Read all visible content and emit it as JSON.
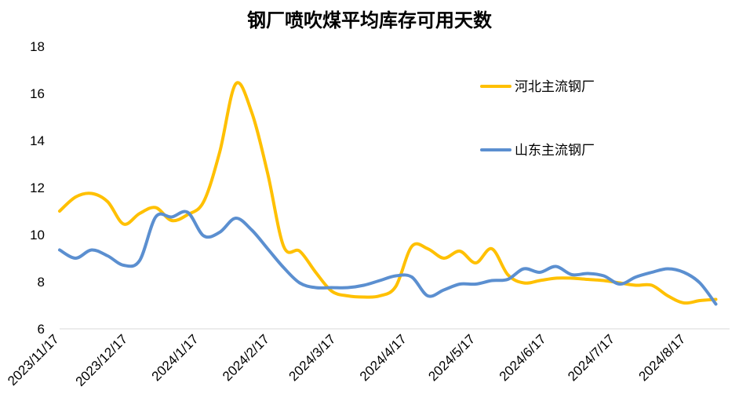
{
  "chart_data": {
    "type": "line",
    "title": "钢厂喷吹煤平均库存可用天数",
    "xlabel": "",
    "ylabel": "",
    "ylim": [
      6,
      18
    ],
    "yticks": [
      "6",
      "8",
      "10",
      "12",
      "14",
      "16",
      "18"
    ],
    "xlim": [
      "2023/11/17",
      "2024/9/5"
    ],
    "xticks": [
      "2023/11/17",
      "2023/12/17",
      "2024/1/17",
      "2024/2/17",
      "2024/3/17",
      "2024/4/17",
      "2024/5/17",
      "2024/6/17",
      "2024/7/17",
      "2024/8/17"
    ],
    "grid": false,
    "legend_position": "top-right",
    "series": [
      {
        "name": "河北主流钢厂",
        "color": "#FFC000",
        "points": [
          [
            "2023/11/17",
            11.0
          ],
          [
            "2023/11/24",
            11.6
          ],
          [
            "2023/12/1",
            11.75
          ],
          [
            "2023/12/8",
            11.4
          ],
          [
            "2023/12/15",
            10.45
          ],
          [
            "2023/12/22",
            10.9
          ],
          [
            "2023/12/29",
            11.15
          ],
          [
            "2024/1/5",
            10.6
          ],
          [
            "2024/1/12",
            10.85
          ],
          [
            "2024/1/19",
            11.4
          ],
          [
            "2024/1/26",
            13.5
          ],
          [
            "2024/2/2",
            16.4
          ],
          [
            "2024/2/9",
            15.2
          ],
          [
            "2024/2/16",
            12.6
          ],
          [
            "2024/2/23",
            9.5
          ],
          [
            "2024/3/1",
            9.3
          ],
          [
            "2024/3/8",
            8.4
          ],
          [
            "2024/3/15",
            7.6
          ],
          [
            "2024/3/22",
            7.4
          ],
          [
            "2024/3/29",
            7.35
          ],
          [
            "2024/4/5",
            7.4
          ],
          [
            "2024/4/12",
            7.8
          ],
          [
            "2024/4/19",
            9.5
          ],
          [
            "2024/4/26",
            9.4
          ],
          [
            "2024/5/3",
            9.0
          ],
          [
            "2024/5/10",
            9.3
          ],
          [
            "2024/5/17",
            8.8
          ],
          [
            "2024/5/24",
            9.4
          ],
          [
            "2024/5/31",
            8.3
          ],
          [
            "2024/6/7",
            7.95
          ],
          [
            "2024/6/14",
            8.05
          ],
          [
            "2024/6/21",
            8.15
          ],
          [
            "2024/6/28",
            8.15
          ],
          [
            "2024/7/5",
            8.1
          ],
          [
            "2024/7/12",
            8.05
          ],
          [
            "2024/7/19",
            7.95
          ],
          [
            "2024/7/26",
            7.85
          ],
          [
            "2024/8/2",
            7.85
          ],
          [
            "2024/8/9",
            7.4
          ],
          [
            "2024/8/16",
            7.1
          ],
          [
            "2024/8/23",
            7.2
          ],
          [
            "2024/8/30",
            7.25
          ]
        ]
      },
      {
        "name": "山东主流钢厂",
        "color": "#5B8FD0",
        "points": [
          [
            "2023/11/17",
            9.35
          ],
          [
            "2023/11/24",
            9.0
          ],
          [
            "2023/12/1",
            9.35
          ],
          [
            "2023/12/8",
            9.1
          ],
          [
            "2023/12/15",
            8.7
          ],
          [
            "2023/12/22",
            8.9
          ],
          [
            "2023/12/29",
            10.75
          ],
          [
            "2024/1/5",
            10.75
          ],
          [
            "2024/1/12",
            10.95
          ],
          [
            "2024/1/19",
            9.95
          ],
          [
            "2024/1/26",
            10.1
          ],
          [
            "2024/2/2",
            10.7
          ],
          [
            "2024/2/9",
            10.2
          ],
          [
            "2024/2/16",
            9.4
          ],
          [
            "2024/2/23",
            8.6
          ],
          [
            "2024/3/1",
            7.95
          ],
          [
            "2024/3/8",
            7.75
          ],
          [
            "2024/3/15",
            7.75
          ],
          [
            "2024/3/22",
            7.75
          ],
          [
            "2024/3/29",
            7.85
          ],
          [
            "2024/4/5",
            8.05
          ],
          [
            "2024/4/12",
            8.25
          ],
          [
            "2024/4/19",
            8.2
          ],
          [
            "2024/4/26",
            7.4
          ],
          [
            "2024/5/3",
            7.65
          ],
          [
            "2024/5/10",
            7.9
          ],
          [
            "2024/5/17",
            7.9
          ],
          [
            "2024/5/24",
            8.05
          ],
          [
            "2024/5/31",
            8.1
          ],
          [
            "2024/6/7",
            8.55
          ],
          [
            "2024/6/14",
            8.4
          ],
          [
            "2024/6/21",
            8.65
          ],
          [
            "2024/6/28",
            8.3
          ],
          [
            "2024/7/5",
            8.35
          ],
          [
            "2024/7/12",
            8.25
          ],
          [
            "2024/7/19",
            7.9
          ],
          [
            "2024/7/26",
            8.2
          ],
          [
            "2024/8/2",
            8.4
          ],
          [
            "2024/8/9",
            8.55
          ],
          [
            "2024/8/16",
            8.4
          ],
          [
            "2024/8/23",
            7.95
          ],
          [
            "2024/8/30",
            7.05
          ]
        ]
      }
    ]
  }
}
